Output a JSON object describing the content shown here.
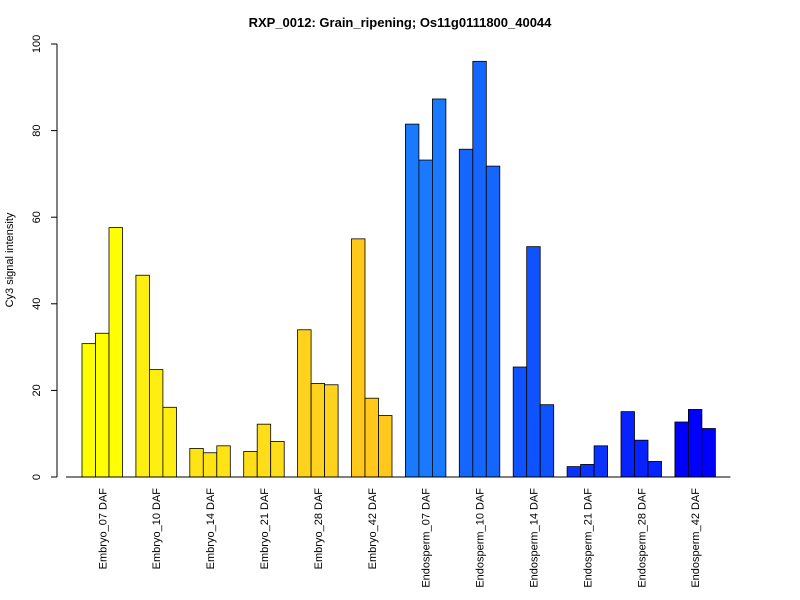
{
  "chart_data": {
    "type": "bar",
    "title": "RXP_0012: Grain_ripening; Os11g0111800_40044",
    "xlabel": "",
    "ylabel": "Cy3 signal intensity",
    "ylim": [
      0,
      100
    ],
    "yticks": [
      0,
      20,
      40,
      60,
      80,
      100
    ],
    "grid": false,
    "legend": "none",
    "categories": [
      "Embryo_07 DAF",
      "Embryo_10 DAF",
      "Embryo_14 DAF",
      "Embryo_21 DAF",
      "Embryo_28 DAF",
      "Embryo_42 DAF",
      "Endosperm_07 DAF",
      "Endosperm_10 DAF",
      "Endosperm_14 DAF",
      "Endosperm_21 DAF",
      "Endosperm_28 DAF",
      "Endosperm_42 DAF"
    ],
    "replicate_values": [
      [
        30.8,
        33.2,
        57.6
      ],
      [
        46.6,
        24.8,
        16.1
      ],
      [
        6.6,
        5.6,
        7.2
      ],
      [
        5.9,
        12.2,
        8.2
      ],
      [
        34.0,
        21.6,
        21.3
      ],
      [
        55.0,
        18.2,
        14.2
      ],
      [
        81.5,
        73.2,
        87.3
      ],
      [
        75.7,
        96.0,
        71.8
      ],
      [
        25.4,
        53.2,
        16.7
      ],
      [
        2.4,
        2.9,
        7.2
      ],
      [
        15.1,
        8.5,
        3.6
      ],
      [
        12.7,
        15.6,
        11.2
      ]
    ],
    "colors": [
      "#ffff00",
      "#ffee11",
      "#ffe314",
      "#ffdd18",
      "#ffd21d",
      "#ffc81a",
      "#1a7aff",
      "#1466ff",
      "#0f52ff",
      "#0a33ff",
      "#0622ff",
      "#0000ff"
    ]
  }
}
